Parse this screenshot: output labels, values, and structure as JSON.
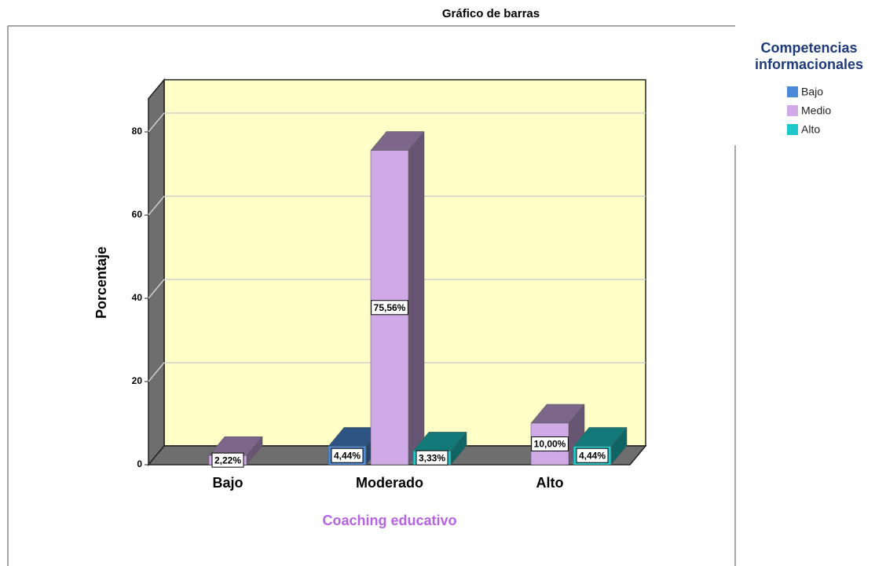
{
  "chart_data": {
    "type": "bar3d",
    "title": "Gráfico de barras",
    "x_label": "Coaching educativo",
    "y_label": "Porcentaje",
    "legend_title": [
      "Competencias",
      "informacionales"
    ],
    "legend": "right",
    "categories": [
      "Bajo",
      "Moderado",
      "Alto"
    ],
    "series": [
      {
        "name": "Bajo",
        "color": "#4b8ad8",
        "values": [
          null,
          4.44,
          null
        ],
        "value_labels": [
          null,
          "4,44%",
          null
        ]
      },
      {
        "name": "Medio",
        "color": "#cfaae6",
        "values": [
          2.22,
          75.56,
          10.0
        ],
        "value_labels": [
          "2,22%",
          "75,56%",
          "10,00%"
        ]
      },
      {
        "name": "Alto",
        "color": "#1ec8c8",
        "values": [
          null,
          3.33,
          4.44
        ],
        "value_labels": [
          null,
          "3,33%",
          "4,44%"
        ]
      }
    ],
    "ylim": [
      0,
      88
    ],
    "yticks": [
      0,
      20,
      40,
      60,
      80
    ],
    "grid": true
  }
}
